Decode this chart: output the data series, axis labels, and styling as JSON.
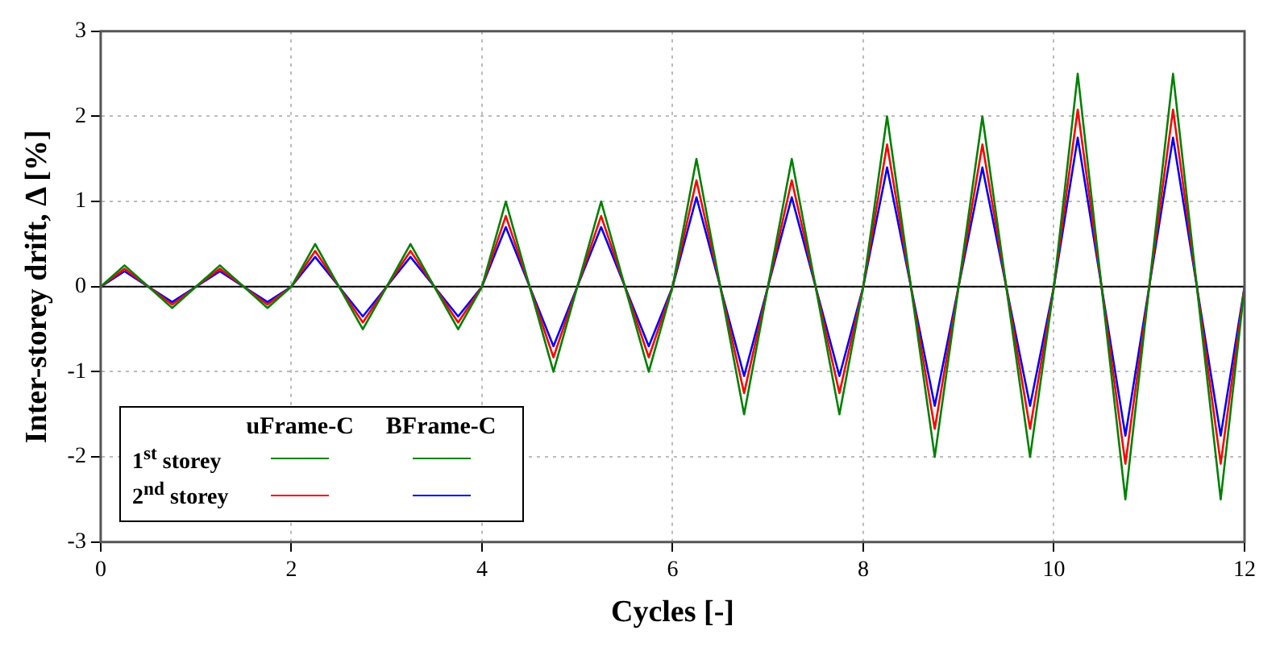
{
  "chart_data": {
    "type": "line",
    "xlabel": "Cycles [-]",
    "ylabel": "Inter-storey drift, Δ [%]",
    "x": [
      0,
      0.25,
      0.5,
      0.75,
      1,
      1.25,
      1.5,
      1.75,
      2,
      2.25,
      2.5,
      2.75,
      3,
      3.25,
      3.5,
      3.75,
      4,
      4.25,
      4.5,
      4.75,
      5,
      5.25,
      5.5,
      5.75,
      6,
      6.25,
      6.5,
      6.75,
      7,
      7.25,
      7.5,
      7.75,
      8,
      8.25,
      8.5,
      8.75,
      9,
      9.25,
      9.5,
      9.75,
      10,
      10.25,
      10.5,
      10.75,
      11,
      11.25,
      11.5,
      11.75,
      12
    ],
    "series": [
      {
        "name": "1$^{st}$ storey",
        "color": "#008000",
        "values": [
          0,
          0.25,
          0,
          -0.25,
          0,
          0.25,
          0,
          -0.25,
          0,
          0.5,
          0,
          -0.5,
          0,
          0.5,
          0,
          -0.5,
          0,
          1,
          0,
          -1,
          0,
          1,
          0,
          -1,
          0,
          1.5,
          0,
          -1.5,
          0,
          1.5,
          0,
          -1.5,
          0,
          2,
          0,
          -2,
          0,
          2,
          0,
          -2,
          0,
          2.5,
          0,
          -2.5,
          0,
          2.5,
          0,
          -2.5,
          0
        ]
      },
      {
        "name": "2$^{nd}$ storey",
        "color": "#ff0000",
        "values": [
          0,
          0.21,
          0,
          -0.21,
          0,
          0.21,
          0,
          -0.21,
          0,
          0.42,
          0,
          -0.42,
          0,
          0.42,
          0,
          -0.42,
          0,
          0.83,
          0,
          -0.83,
          0,
          0.83,
          0,
          -0.83,
          0,
          1.25,
          0,
          -1.25,
          0,
          1.25,
          0,
          -1.25,
          0,
          1.67,
          0,
          -1.67,
          0,
          1.67,
          0,
          -1.67,
          0,
          2.08,
          0,
          -2.08,
          0,
          2.08,
          0,
          -2.08,
          0
        ]
      },
      {
        "color": "#0000ff",
        "values": [
          0,
          0.18,
          0,
          -0.18,
          0,
          0.18,
          0,
          -0.18,
          0,
          0.35,
          0,
          -0.35,
          0,
          0.35,
          0,
          -0.35,
          0,
          0.7,
          0,
          -0.7,
          0,
          0.7,
          0,
          -0.7,
          0,
          1.05,
          0,
          -1.05,
          0,
          1.05,
          0,
          -1.05,
          0,
          1.4,
          0,
          -1.4,
          0,
          1.4,
          0,
          -1.4,
          0,
          1.75,
          0,
          -1.75,
          0,
          1.75,
          0,
          -1.75,
          0
        ]
      }
    ],
    "annotations": [
      "uFrame-C",
      "BFrame-C"
    ],
    "xlim": [
      0,
      12
    ],
    "xticks": [
      0,
      2,
      4,
      6,
      8,
      10,
      12
    ],
    "ylim": [
      -3,
      3
    ],
    "yticks": [
      -3,
      -2,
      -1,
      0,
      1,
      2,
      3
    ],
    "ref_lines": [
      {
        "axis": "y",
        "value": 0,
        "color": "#000000"
      }
    ],
    "grid": true,
    "legend": "bottom left",
    "marker": "none",
    "line_style": "solid"
  }
}
